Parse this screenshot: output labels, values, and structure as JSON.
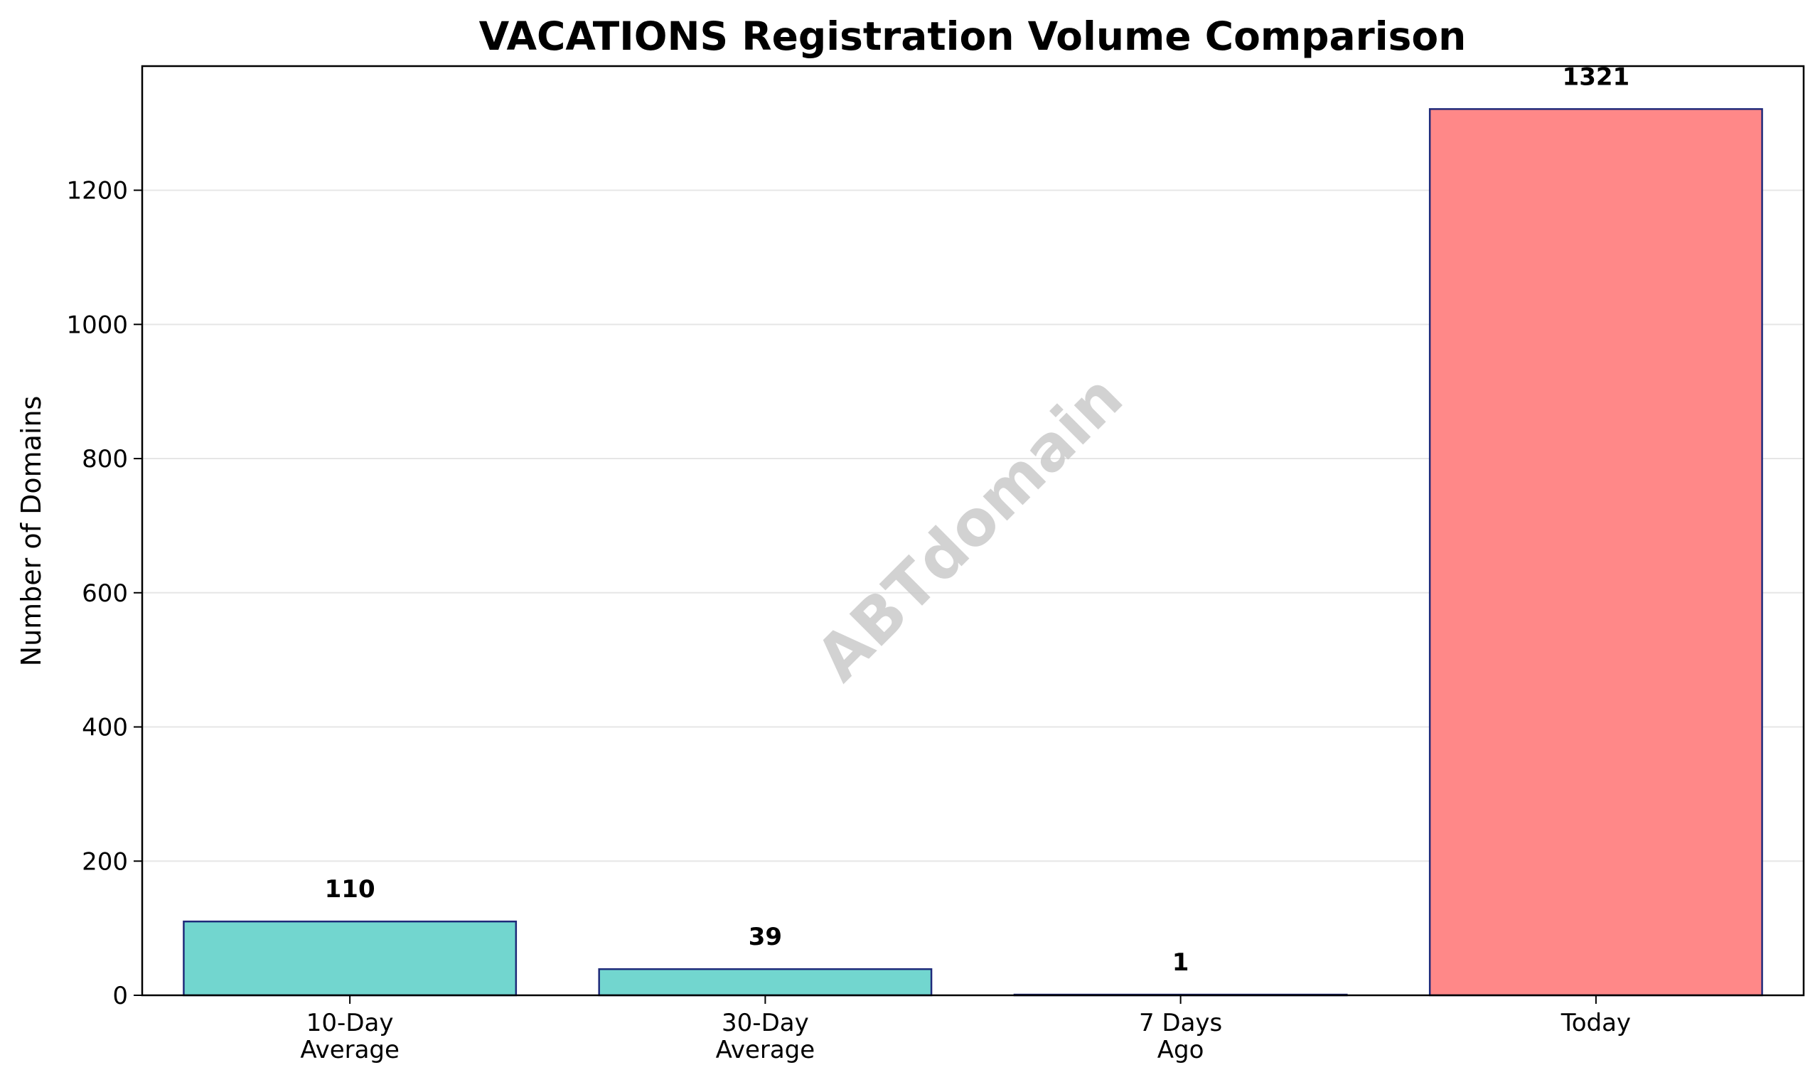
{
  "chart_data": {
    "type": "bar",
    "title": "VACATIONS Registration Volume Comparison",
    "xlabel": "",
    "ylabel": "Number of Domains",
    "categories": [
      [
        "10-Day",
        "Average"
      ],
      [
        "30-Day",
        "Average"
      ],
      [
        "7 Days",
        "Ago"
      ],
      [
        "Today"
      ]
    ],
    "values": [
      110,
      39,
      1,
      1321
    ],
    "data_labels": [
      "110",
      "39",
      "1",
      "1321"
    ],
    "bar_colors": [
      "#72d6cf",
      "#72d6cf",
      "#72d6cf",
      "#ff8888"
    ],
    "edge_color": "#1f2a7a",
    "ylim": [
      0,
      1385
    ],
    "yticks": [
      0,
      200,
      400,
      600,
      800,
      1000,
      1200
    ],
    "grid": "y",
    "watermark": "ABTdomain"
  }
}
